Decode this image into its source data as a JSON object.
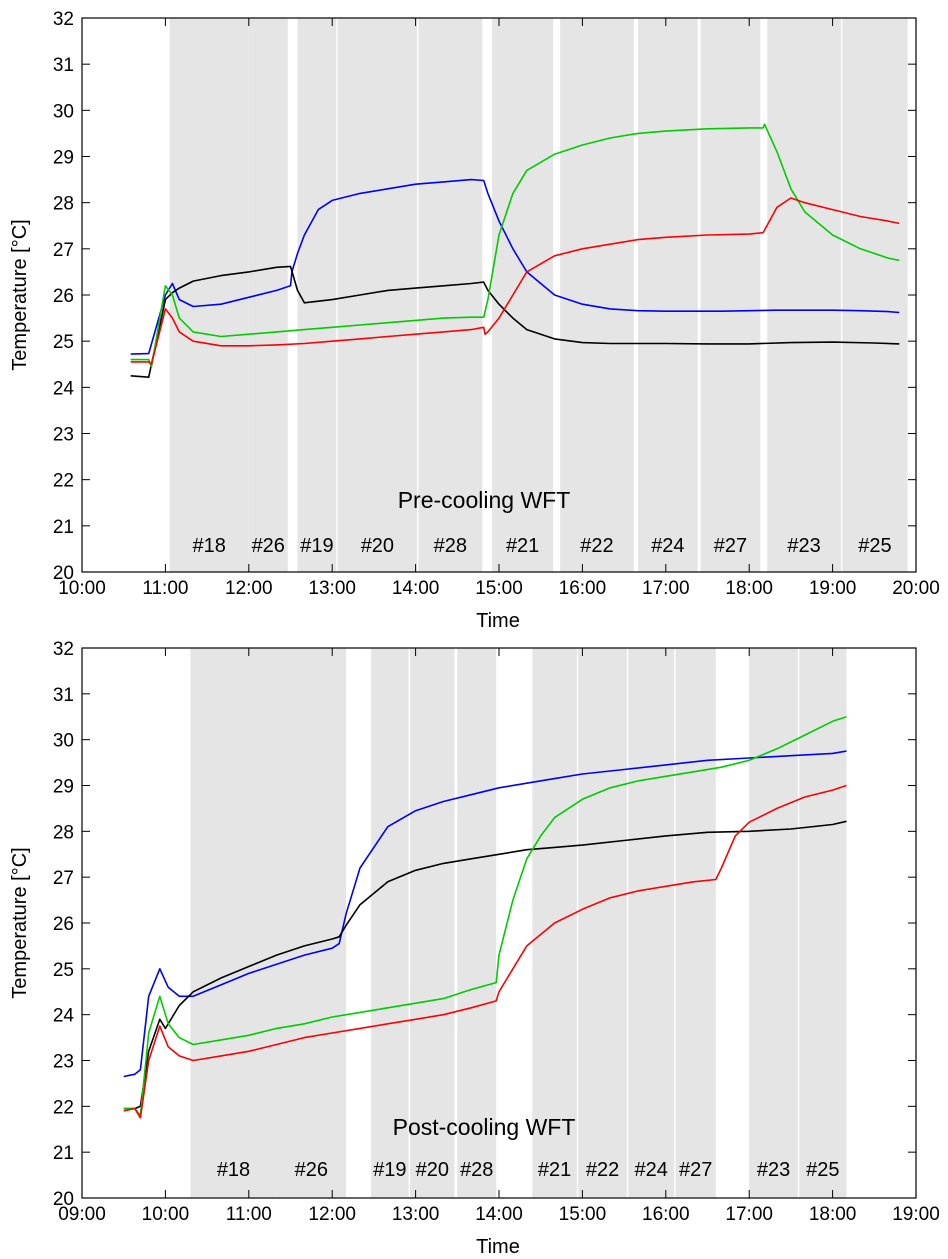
{
  "chart_data": [
    {
      "type": "line",
      "title": "Pre-cooling WFT",
      "xlabel": "Time",
      "ylabel": "Temperature [°C]",
      "xlim": [
        "10:00",
        "20:00"
      ],
      "ylim": [
        20,
        32
      ],
      "x_ticks": [
        "10:00",
        "11:00",
        "12:00",
        "13:00",
        "14:00",
        "15:00",
        "16:00",
        "17:00",
        "18:00",
        "19:00",
        "20:00"
      ],
      "y_ticks": [
        20,
        21,
        22,
        23,
        24,
        25,
        26,
        27,
        28,
        29,
        30,
        31,
        32
      ],
      "grid": false,
      "bands": [
        {
          "label": "#18",
          "start": "11:03",
          "end": "12:00"
        },
        {
          "label": "#26",
          "start": "12:00",
          "end": "12:28"
        },
        {
          "label": "#19",
          "start": "12:35",
          "end": "13:03"
        },
        {
          "label": "#20",
          "start": "13:04",
          "end": "14:01"
        },
        {
          "label": "#28",
          "start": "14:02",
          "end": "14:48"
        },
        {
          "label": "#21",
          "start": "14:55",
          "end": "15:39"
        },
        {
          "label": "#22",
          "start": "15:44",
          "end": "16:37"
        },
        {
          "label": "#24",
          "start": "16:40",
          "end": "17:23"
        },
        {
          "label": "#27",
          "start": "17:25",
          "end": "18:08"
        },
        {
          "label": "#23",
          "start": "18:13",
          "end": "19:06"
        },
        {
          "label": "#25",
          "start": "19:07",
          "end": "19:54"
        }
      ],
      "series": [
        {
          "color": "#0000ff",
          "x": [
            "10:35",
            "10:48",
            "11:00",
            "11:05",
            "11:10",
            "11:20",
            "11:40",
            "12:00",
            "12:20",
            "12:30",
            "12:31",
            "12:35",
            "12:40",
            "12:50",
            "13:00",
            "13:20",
            "13:40",
            "14:00",
            "14:20",
            "14:40",
            "14:49",
            "14:52",
            "15:00",
            "15:10",
            "15:20",
            "15:40",
            "16:00",
            "16:20",
            "16:40",
            "17:00",
            "17:20",
            "17:40",
            "18:00",
            "18:20",
            "18:40",
            "19:00",
            "19:20",
            "19:40",
            "19:48"
          ],
          "values": [
            24.72,
            24.73,
            26.0,
            26.25,
            25.9,
            25.75,
            25.8,
            25.95,
            26.1,
            26.2,
            26.5,
            26.9,
            27.3,
            27.85,
            28.05,
            28.2,
            28.3,
            28.4,
            28.45,
            28.5,
            28.48,
            28.2,
            27.6,
            27.0,
            26.5,
            26.0,
            25.8,
            25.7,
            25.66,
            25.65,
            25.65,
            25.65,
            25.66,
            25.67,
            25.67,
            25.67,
            25.66,
            25.64,
            25.62
          ]
        },
        {
          "color": "#000000",
          "x": [
            "10:35",
            "10:48",
            "11:00",
            "11:05",
            "11:10",
            "11:20",
            "11:40",
            "12:00",
            "12:20",
            "12:30",
            "12:35",
            "12:40",
            "13:00",
            "13:20",
            "13:40",
            "14:00",
            "14:20",
            "14:40",
            "14:49",
            "14:52",
            "15:00",
            "15:10",
            "15:20",
            "15:40",
            "16:00",
            "16:20",
            "16:40",
            "17:00",
            "17:30",
            "18:00",
            "18:30",
            "19:00",
            "19:30",
            "19:48"
          ],
          "values": [
            24.25,
            24.22,
            25.9,
            26.05,
            26.15,
            26.3,
            26.42,
            26.5,
            26.6,
            26.62,
            26.1,
            25.83,
            25.9,
            26.0,
            26.1,
            26.15,
            26.2,
            26.25,
            26.28,
            26.1,
            25.8,
            25.5,
            25.25,
            25.05,
            24.97,
            24.95,
            24.95,
            24.95,
            24.94,
            24.94,
            24.97,
            24.98,
            24.96,
            24.94
          ]
        },
        {
          "color": "#00cc00",
          "x": [
            "10:35",
            "10:48",
            "10:50",
            "11:00",
            "11:05",
            "11:10",
            "11:20",
            "11:40",
            "12:00",
            "12:20",
            "12:40",
            "13:00",
            "13:20",
            "13:40",
            "14:00",
            "14:20",
            "14:40",
            "14:49",
            "14:52",
            "15:00",
            "15:10",
            "15:20",
            "15:40",
            "16:00",
            "16:20",
            "16:40",
            "17:00",
            "17:30",
            "18:00",
            "18:10",
            "18:11",
            "18:20",
            "18:30",
            "18:40",
            "19:00",
            "19:20",
            "19:40",
            "19:48"
          ],
          "values": [
            24.6,
            24.6,
            24.45,
            26.2,
            26.0,
            25.5,
            25.2,
            25.1,
            25.15,
            25.2,
            25.25,
            25.3,
            25.35,
            25.4,
            25.45,
            25.5,
            25.52,
            25.52,
            25.9,
            27.3,
            28.2,
            28.7,
            29.05,
            29.25,
            29.4,
            29.5,
            29.55,
            29.6,
            29.62,
            29.62,
            29.7,
            29.1,
            28.3,
            27.8,
            27.3,
            27.0,
            26.8,
            26.75
          ]
        },
        {
          "color": "#ff0000",
          "x": [
            "10:35",
            "10:48",
            "10:50",
            "11:00",
            "11:05",
            "11:10",
            "11:20",
            "11:40",
            "12:00",
            "12:20",
            "12:40",
            "13:00",
            "13:20",
            "13:40",
            "14:00",
            "14:20",
            "14:40",
            "14:49",
            "14:50",
            "14:52",
            "15:00",
            "15:10",
            "15:20",
            "15:40",
            "16:00",
            "16:20",
            "16:40",
            "17:00",
            "17:30",
            "18:00",
            "18:10",
            "18:20",
            "18:30",
            "18:40",
            "19:00",
            "19:20",
            "19:40",
            "19:48"
          ],
          "values": [
            24.55,
            24.55,
            24.5,
            25.7,
            25.5,
            25.2,
            25.0,
            24.9,
            24.9,
            24.92,
            24.95,
            25.0,
            25.05,
            25.1,
            25.15,
            25.2,
            25.25,
            25.3,
            25.15,
            25.2,
            25.5,
            26.0,
            26.5,
            26.85,
            27.0,
            27.1,
            27.2,
            27.25,
            27.3,
            27.32,
            27.35,
            27.9,
            28.1,
            28.0,
            27.85,
            27.7,
            27.6,
            27.55
          ]
        }
      ]
    },
    {
      "type": "line",
      "title": "Post-cooling WFT",
      "xlabel": "Time",
      "ylabel": "Temperature [°C]",
      "xlim": [
        "09:00",
        "19:00"
      ],
      "ylim": [
        20,
        32
      ],
      "x_ticks": [
        "09:00",
        "10:00",
        "11:00",
        "12:00",
        "13:00",
        "14:00",
        "15:00",
        "16:00",
        "17:00",
        "18:00",
        "19:00"
      ],
      "y_ticks": [
        20,
        21,
        22,
        23,
        24,
        25,
        26,
        27,
        28,
        29,
        30,
        31,
        32
      ],
      "grid": false,
      "bands": [
        {
          "label": "#18",
          "start": "10:18",
          "end": "11:20"
        },
        {
          "label": "#26",
          "start": "11:20",
          "end": "12:10"
        },
        {
          "label": "#19",
          "start": "12:28",
          "end": "12:55"
        },
        {
          "label": "#20",
          "start": "12:56",
          "end": "13:28"
        },
        {
          "label": "#28",
          "start": "13:30",
          "end": "13:58"
        },
        {
          "label": "#21",
          "start": "14:24",
          "end": "14:56"
        },
        {
          "label": "#22",
          "start": "14:57",
          "end": "15:32"
        },
        {
          "label": "#24",
          "start": "15:33",
          "end": "16:06"
        },
        {
          "label": "#27",
          "start": "16:07",
          "end": "16:36"
        },
        {
          "label": "#23",
          "start": "17:00",
          "end": "17:35"
        },
        {
          "label": "#25",
          "start": "17:36",
          "end": "18:10"
        }
      ],
      "series": [
        {
          "color": "#0000ff",
          "x": [
            "09:30",
            "09:38",
            "09:42",
            "09:48",
            "09:56",
            "10:02",
            "10:10",
            "10:20",
            "10:40",
            "11:00",
            "11:20",
            "11:40",
            "12:00",
            "12:05",
            "12:10",
            "12:20",
            "12:40",
            "13:00",
            "13:20",
            "13:40",
            "14:00",
            "14:20",
            "14:40",
            "15:00",
            "15:30",
            "16:00",
            "16:30",
            "17:00",
            "17:30",
            "18:00",
            "18:10"
          ],
          "values": [
            22.65,
            22.7,
            22.8,
            24.4,
            25.0,
            24.6,
            24.4,
            24.4,
            24.65,
            24.9,
            25.1,
            25.3,
            25.45,
            25.55,
            26.2,
            27.2,
            28.1,
            28.45,
            28.65,
            28.8,
            28.95,
            29.05,
            29.15,
            29.25,
            29.35,
            29.45,
            29.55,
            29.6,
            29.65,
            29.7,
            29.75
          ]
        },
        {
          "color": "#000000",
          "x": [
            "09:30",
            "09:38",
            "09:42",
            "09:48",
            "09:56",
            "10:00",
            "10:10",
            "10:20",
            "10:40",
            "11:00",
            "11:20",
            "11:40",
            "12:00",
            "12:05",
            "12:10",
            "12:20",
            "12:40",
            "13:00",
            "13:20",
            "13:40",
            "14:00",
            "14:20",
            "14:40",
            "15:00",
            "15:30",
            "16:00",
            "16:30",
            "17:00",
            "17:30",
            "18:00",
            "18:10"
          ],
          "values": [
            21.95,
            21.95,
            22.0,
            23.2,
            23.9,
            23.7,
            24.2,
            24.5,
            24.8,
            25.05,
            25.3,
            25.5,
            25.65,
            25.7,
            25.95,
            26.4,
            26.9,
            27.15,
            27.3,
            27.4,
            27.5,
            27.6,
            27.65,
            27.7,
            27.8,
            27.9,
            27.98,
            28.0,
            28.05,
            28.15,
            28.22
          ]
        },
        {
          "color": "#00cc00",
          "x": [
            "09:30",
            "09:38",
            "09:42",
            "09:48",
            "09:56",
            "10:02",
            "10:10",
            "10:20",
            "10:40",
            "11:00",
            "11:20",
            "11:40",
            "12:00",
            "12:20",
            "12:40",
            "13:00",
            "13:20",
            "13:40",
            "13:58",
            "14:00",
            "14:10",
            "14:20",
            "14:30",
            "14:40",
            "15:00",
            "15:20",
            "15:40",
            "16:00",
            "16:20",
            "16:40",
            "17:00",
            "17:20",
            "17:40",
            "18:00",
            "18:10"
          ],
          "values": [
            21.95,
            21.95,
            21.8,
            23.6,
            24.4,
            23.8,
            23.5,
            23.35,
            23.45,
            23.55,
            23.7,
            23.8,
            23.95,
            24.05,
            24.15,
            24.25,
            24.35,
            24.55,
            24.7,
            25.3,
            26.5,
            27.4,
            27.9,
            28.3,
            28.7,
            28.95,
            29.1,
            29.2,
            29.3,
            29.4,
            29.55,
            29.8,
            30.1,
            30.4,
            30.5
          ]
        },
        {
          "color": "#ff0000",
          "x": [
            "09:30",
            "09:38",
            "09:42",
            "09:48",
            "09:56",
            "10:02",
            "10:10",
            "10:20",
            "10:40",
            "11:00",
            "11:20",
            "11:40",
            "12:00",
            "12:20",
            "12:40",
            "13:00",
            "13:20",
            "13:40",
            "13:58",
            "14:00",
            "14:10",
            "14:20",
            "14:40",
            "15:00",
            "15:20",
            "15:40",
            "16:00",
            "16:20",
            "16:36",
            "16:40",
            "16:50",
            "17:00",
            "17:20",
            "17:40",
            "18:00",
            "18:10"
          ],
          "values": [
            21.9,
            21.95,
            21.75,
            23.0,
            23.75,
            23.3,
            23.1,
            23.0,
            23.1,
            23.2,
            23.35,
            23.5,
            23.6,
            23.7,
            23.8,
            23.9,
            24.0,
            24.15,
            24.3,
            24.5,
            25.0,
            25.5,
            26.0,
            26.3,
            26.55,
            26.7,
            26.8,
            26.9,
            26.95,
            27.2,
            27.9,
            28.2,
            28.5,
            28.75,
            28.9,
            29.0
          ]
        }
      ]
    }
  ]
}
